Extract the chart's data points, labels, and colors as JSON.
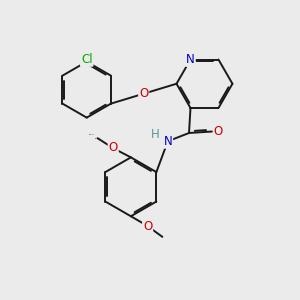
{
  "bg_color": "#ebebeb",
  "bond_color": "#1a1a1a",
  "bond_width": 1.4,
  "dbo": 0.055,
  "atom_colors": {
    "N": "#0000cc",
    "O": "#cc0000",
    "Cl": "#00aa00",
    "H": "#559999",
    "C": "#1a1a1a"
  },
  "fs": 8.5,
  "fs_small": 7.5
}
